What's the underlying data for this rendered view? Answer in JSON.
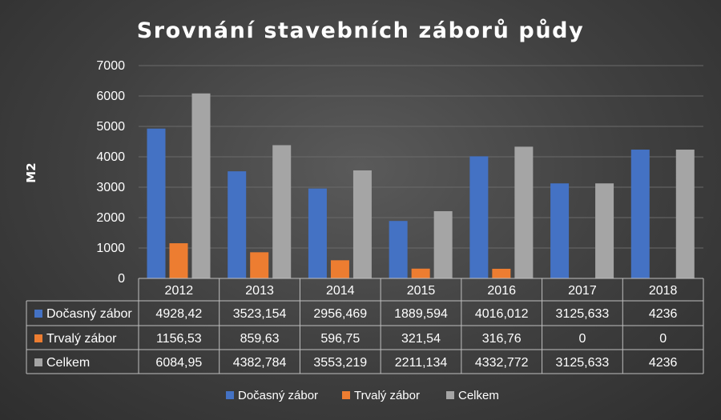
{
  "chart_data": {
    "type": "bar",
    "title": "Srovnání stavebních záborů půdy",
    "ylabel": "M2",
    "xlabel": "",
    "ylim": [
      0,
      7000
    ],
    "yticks": [
      0,
      1000,
      2000,
      3000,
      4000,
      5000,
      6000,
      7000
    ],
    "grid": true,
    "legend_position": "bottom",
    "categories": [
      "2012",
      "2013",
      "2014",
      "2015",
      "2016",
      "2017",
      "2018"
    ],
    "series": [
      {
        "name": "Dočasný zábor",
        "color": "#4472c4",
        "values": [
          4928.42,
          3523.154,
          2956.469,
          1889.594,
          4016.012,
          3125.633,
          4236
        ],
        "labels": [
          "4928,42",
          "3523,154",
          "2956,469",
          "1889,594",
          "4016,012",
          "3125,633",
          "4236"
        ]
      },
      {
        "name": "Trvalý zábor",
        "color": "#ed7d31",
        "values": [
          1156.53,
          859.63,
          596.75,
          321.54,
          316.76,
          0,
          0
        ],
        "labels": [
          "1156,53",
          "859,63",
          "596,75",
          "321,54",
          "316,76",
          "0",
          "0"
        ]
      },
      {
        "name": "Celkem",
        "color": "#a5a5a5",
        "values": [
          6084.95,
          4382.784,
          3553.219,
          2211.134,
          4332.772,
          3125.633,
          4236
        ],
        "labels": [
          "6084,95",
          "4382,784",
          "3553,219",
          "2211,134",
          "4332,772",
          "3125,633",
          "4236"
        ]
      }
    ]
  }
}
